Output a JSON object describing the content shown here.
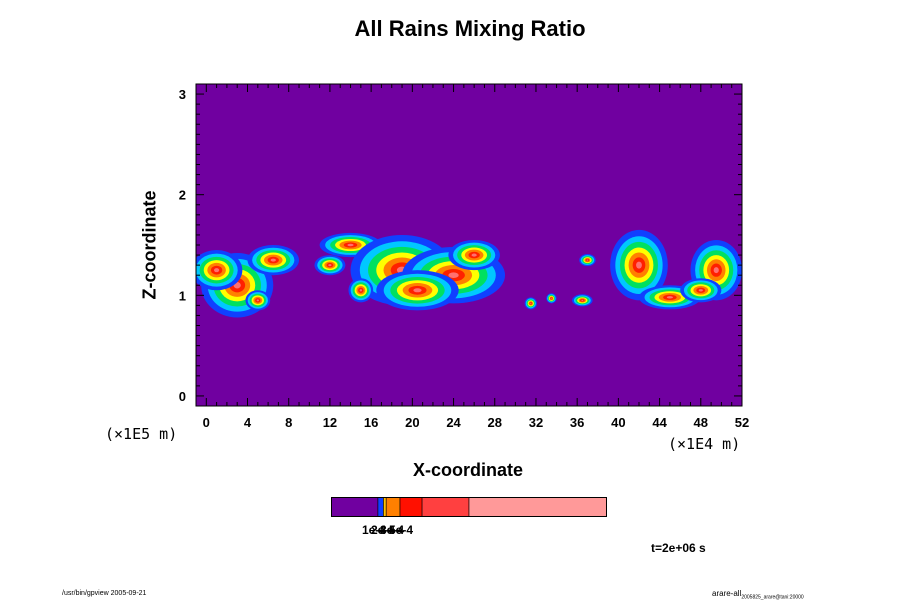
{
  "chart_data": {
    "type": "heatmap",
    "title": "All Rains Mixing Ratio",
    "xlabel": "X-coordinate",
    "ylabel": "Z-coordinate",
    "x_scale_note": "(×1E4 m)",
    "y_scale_note": "(×1E5 m)",
    "xlim": [
      -1,
      52
    ],
    "ylim": [
      -0.1,
      3.1
    ],
    "x_ticks": [
      "0",
      "4",
      "8",
      "12",
      "16",
      "20",
      "24",
      "28",
      "32",
      "36",
      "40",
      "44",
      "48",
      "52"
    ],
    "x_tick_values": [
      0,
      4,
      8,
      12,
      16,
      20,
      24,
      28,
      32,
      36,
      40,
      44,
      48,
      52
    ],
    "y_ticks": [
      "0",
      "1",
      "2",
      "3"
    ],
    "y_tick_values": [
      0,
      1,
      2,
      3
    ],
    "background_color": "#7000a0",
    "contour_colors": [
      "#1040ff",
      "#00c8ff",
      "#00e060",
      "#ffff00",
      "#ff8000",
      "#ff2000",
      "#ff7070"
    ],
    "cells": [
      {
        "x": 3,
        "z": 1.1,
        "sx": 3.5,
        "sz": 0.32
      },
      {
        "x": 1,
        "z": 1.25,
        "sx": 2.5,
        "sz": 0.2
      },
      {
        "x": 6.5,
        "z": 1.35,
        "sx": 2.5,
        "sz": 0.15
      },
      {
        "x": 5,
        "z": 0.95,
        "sx": 1.2,
        "sz": 0.1
      },
      {
        "x": 14,
        "z": 1.5,
        "sx": 3,
        "sz": 0.12
      },
      {
        "x": 19,
        "z": 1.25,
        "sx": 5,
        "sz": 0.35
      },
      {
        "x": 24,
        "z": 1.2,
        "sx": 5,
        "sz": 0.28
      },
      {
        "x": 20.5,
        "z": 1.05,
        "sx": 4,
        "sz": 0.2
      },
      {
        "x": 26,
        "z": 1.4,
        "sx": 2.5,
        "sz": 0.15
      },
      {
        "x": 12,
        "z": 1.3,
        "sx": 1.5,
        "sz": 0.1
      },
      {
        "x": 15,
        "z": 1.05,
        "sx": 1.2,
        "sz": 0.12
      },
      {
        "x": 42,
        "z": 1.3,
        "sx": 2.8,
        "sz": 0.35
      },
      {
        "x": 45,
        "z": 0.98,
        "sx": 3,
        "sz": 0.12
      },
      {
        "x": 49.5,
        "z": 1.25,
        "sx": 2.5,
        "sz": 0.3
      },
      {
        "x": 48,
        "z": 1.05,
        "sx": 2,
        "sz": 0.12
      },
      {
        "x": 31.5,
        "z": 0.92,
        "sx": 0.6,
        "sz": 0.06
      },
      {
        "x": 33.5,
        "z": 0.97,
        "sx": 0.5,
        "sz": 0.05
      },
      {
        "x": 36.5,
        "z": 0.95,
        "sx": 1,
        "sz": 0.06
      },
      {
        "x": 37,
        "z": 1.35,
        "sx": 0.8,
        "sz": 0.06
      }
    ],
    "colorbar": {
      "colors": [
        "#7000a0",
        "#1040ff",
        "#ffc000",
        "#ff8000",
        "#ff1000",
        "#ff4040",
        "#ff9999"
      ],
      "bounds": [
        0,
        0.17,
        0.19,
        0.2,
        0.25,
        0.33,
        0.5,
        1.0
      ],
      "labels": [
        "1e-4",
        "2e-4",
        "3e-4",
        "5e-4"
      ]
    },
    "time_label": "t=2e+06 s"
  },
  "footer": {
    "left": "/usr/bin/gpview 2005-09-21",
    "right_main": "arare-all",
    "right_sub": "2005825_arare@tani:20000"
  }
}
